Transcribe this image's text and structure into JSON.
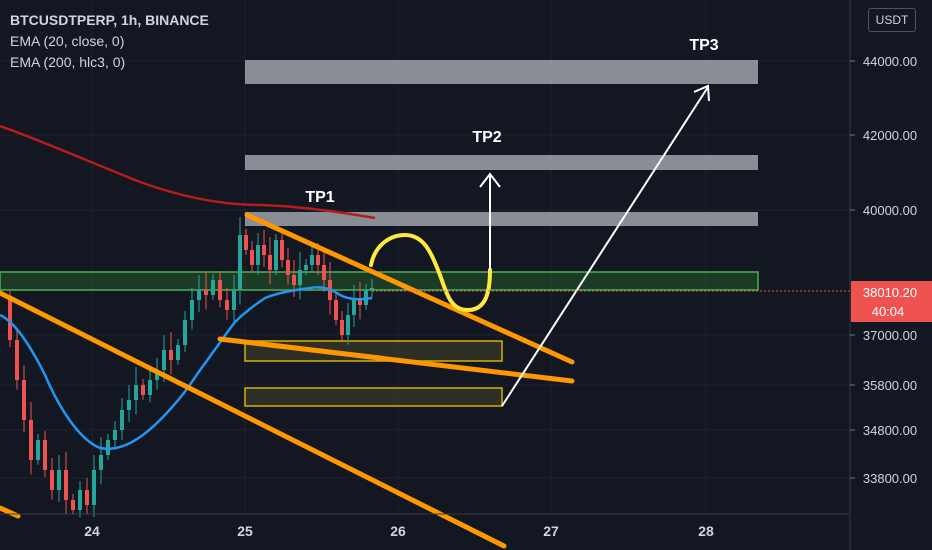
{
  "legend": {
    "title": "BTCUSDTPERP, 1h, BINANCE",
    "ema20": "EMA (20, close, 0)",
    "ema200": "EMA (200, hlc3, 0)"
  },
  "currency": "USDT",
  "chart_data": {
    "type": "candlestick",
    "symbol": "BTCUSDTPERP",
    "interval": "1h",
    "exchange": "BINANCE",
    "x_ticks": [
      "24",
      "25",
      "26",
      "27",
      "28"
    ],
    "y_ticks": [
      "44000.00",
      "42000.00",
      "40000.00",
      "37000.00",
      "35800.00",
      "34800.00",
      "33800.00"
    ],
    "last_price": {
      "price": "38010.20",
      "countdown": "40:04",
      "value": 38010.2
    },
    "annotations": [
      {
        "label": "TP1",
        "zone": [
          39600,
          39900
        ]
      },
      {
        "label": "TP2",
        "zone": [
          41000,
          41400
        ]
      },
      {
        "label": "TP3",
        "zone": [
          43400,
          44000
        ]
      }
    ],
    "colors": {
      "up": "#26a69a",
      "down": "#ef5350",
      "ema20": "#2196f3",
      "ema200": "#b71c1c",
      "trendline": "#ff9800",
      "support_zone": "#4caf50",
      "target_zone": "#b2b5be",
      "sketch": "#ffeb3b"
    }
  }
}
